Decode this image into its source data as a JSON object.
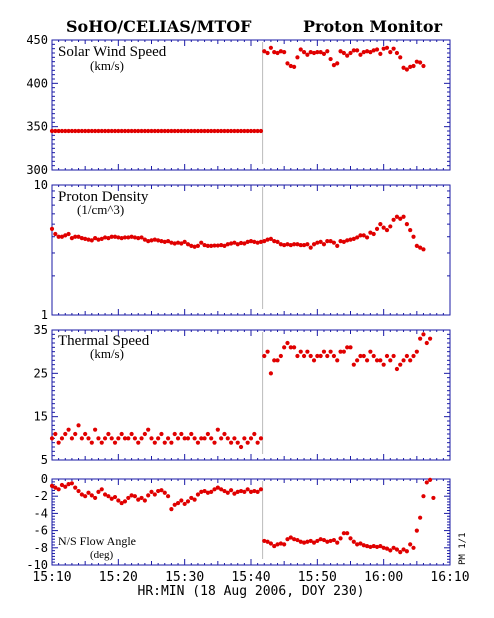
{
  "header": {
    "left_title": "SoHO/CELIAS/MTOF",
    "right_title": "Proton Monitor"
  },
  "side_label": "PM 1/1",
  "chart_data": [
    {
      "type": "scatter",
      "title": "Solar Wind Speed",
      "unit": "(km/s)",
      "ylim": [
        300,
        450
      ],
      "yticks": [
        300,
        350,
        400,
        450
      ],
      "xlim": [
        "15:10",
        "16:10"
      ],
      "color": "#e00000",
      "segments": [
        {
          "start": "15:10",
          "step_min": 0.5,
          "values": [
            345,
            345,
            345,
            345,
            345,
            345,
            345,
            345,
            345,
            345,
            345,
            345,
            345,
            345,
            345,
            345,
            345,
            345,
            345,
            345,
            345,
            345,
            345,
            345,
            345,
            345,
            345,
            345,
            345,
            345,
            345,
            345,
            345,
            345,
            345,
            345,
            345,
            345,
            345,
            345,
            345,
            345,
            345,
            345,
            345,
            345,
            345,
            345,
            345,
            345,
            345,
            345,
            345,
            345,
            345,
            345,
            345,
            345,
            345,
            345,
            345,
            345,
            345,
            345
          ]
        },
        {
          "start": "15:42",
          "step_min": 0.5,
          "values": [
            437,
            435,
            441,
            436,
            435,
            437,
            436,
            423,
            420,
            419,
            430,
            439,
            436,
            433,
            436,
            435,
            436,
            436,
            434,
            437,
            428,
            421,
            423,
            437,
            435,
            432,
            435,
            438,
            438,
            433,
            436,
            437,
            436,
            438,
            439,
            434,
            440,
            441,
            436,
            440,
            435,
            430,
            418,
            416,
            419,
            420,
            425,
            424,
            420
          ]
        }
      ]
    },
    {
      "type": "scatter",
      "title": "Proton Density",
      "unit": "(1/cm^3)",
      "scale": "log",
      "ylim": [
        1,
        10
      ],
      "yticks": [
        1,
        10
      ],
      "xlim": [
        "15:10",
        "16:10"
      ],
      "color": "#e00000",
      "segments": [
        {
          "start": "15:10",
          "step_min": 0.5,
          "values": [
            4.6,
            4.2,
            4.0,
            4.0,
            4.1,
            4.2,
            3.9,
            4.0,
            4.0,
            3.9,
            3.85,
            3.8,
            3.75,
            3.9,
            3.8,
            3.85,
            3.95,
            3.9,
            4.0,
            4.0,
            3.95,
            3.9,
            3.95,
            3.95,
            4.0,
            3.95,
            3.9,
            3.95,
            3.8,
            3.7,
            3.75,
            3.8,
            3.75,
            3.7,
            3.65,
            3.7,
            3.6,
            3.55,
            3.6,
            3.55,
            3.65,
            3.5,
            3.4,
            3.35,
            3.4,
            3.6,
            3.45,
            3.4,
            3.4,
            3.42,
            3.42,
            3.45,
            3.4,
            3.5,
            3.55,
            3.6,
            3.5,
            3.58,
            3.55,
            3.65,
            3.7,
            3.65,
            3.6,
            3.65
          ]
        },
        {
          "start": "15:42",
          "step_min": 0.5,
          "values": [
            3.7,
            3.8,
            3.85,
            3.7,
            3.65,
            3.5,
            3.45,
            3.5,
            3.45,
            3.5,
            3.5,
            3.45,
            3.45,
            3.5,
            3.3,
            3.5,
            3.6,
            3.65,
            3.5,
            3.7,
            3.7,
            3.6,
            3.4,
            3.7,
            3.65,
            3.75,
            3.8,
            3.85,
            3.95,
            4.1,
            4.1,
            3.95,
            4.3,
            4.2,
            4.6,
            5.0,
            4.7,
            4.5,
            4.8,
            5.4,
            5.7,
            5.5,
            5.7,
            5.0,
            4.5,
            4.0,
            3.4,
            3.3,
            3.2
          ]
        }
      ]
    },
    {
      "type": "scatter",
      "title": "Thermal Speed",
      "unit": "(km/s)",
      "ylim": [
        5,
        35
      ],
      "yticks": [
        5,
        15,
        25,
        35
      ],
      "xlim": [
        "15:10",
        "16:10"
      ],
      "color": "#e00000",
      "segments": [
        {
          "start": "15:10",
          "step_min": 0.5,
          "values": [
            10,
            11,
            9,
            10,
            11,
            12,
            10,
            11,
            13,
            10,
            11,
            10,
            9,
            12,
            10,
            9,
            10,
            11,
            10,
            9,
            10,
            11,
            10,
            10,
            11,
            10,
            9,
            10,
            11,
            12,
            10,
            9,
            10,
            11,
            9,
            10,
            9,
            11,
            10,
            11,
            10,
            10,
            11,
            10,
            9,
            10,
            10,
            11,
            10,
            9,
            12,
            10,
            11,
            10,
            9,
            10,
            9,
            8,
            10,
            9,
            10,
            11,
            9,
            10
          ]
        },
        {
          "start": "15:42",
          "step_min": 0.5,
          "values": [
            29,
            30,
            25,
            28,
            28,
            29,
            31,
            32,
            31,
            31,
            29,
            30,
            29,
            30,
            29,
            28,
            29,
            29,
            30,
            29,
            30,
            29,
            28,
            30,
            30,
            31,
            31,
            27,
            28,
            29,
            29,
            28,
            30,
            29,
            28,
            28,
            27,
            29,
            28,
            29,
            26,
            27,
            28,
            29,
            28,
            29,
            30,
            33,
            34,
            32,
            33
          ]
        }
      ]
    },
    {
      "type": "scatter",
      "title": "N/S Flow Angle",
      "unit": "(deg)",
      "ylim": [
        -10,
        0
      ],
      "yticks": [
        -10,
        -8,
        -6,
        -4,
        -2,
        0
      ],
      "xlim": [
        "15:10",
        "16:10"
      ],
      "xticks": [
        "15:10",
        "15:20",
        "15:30",
        "15:40",
        "15:50",
        "16:00",
        "16:10"
      ],
      "xlabel": "HR:MIN (18 Aug 2006, DOY 230)",
      "color": "#e00000",
      "segments": [
        {
          "start": "15:10",
          "step_min": 0.5,
          "values": [
            -0.8,
            -1.0,
            -1.2,
            -0.7,
            -0.9,
            -0.6,
            -0.5,
            -1.0,
            -1.4,
            -1.8,
            -2.0,
            -1.6,
            -1.9,
            -2.2,
            -1.5,
            -1.2,
            -1.8,
            -2.0,
            -2.3,
            -2.1,
            -2.5,
            -2.8,
            -2.6,
            -2.2,
            -1.9,
            -2.0,
            -2.4,
            -2.2,
            -2.5,
            -1.9,
            -1.5,
            -1.8,
            -1.4,
            -1.3,
            -1.6,
            -2.0,
            -3.5,
            -3.0,
            -2.8,
            -2.5,
            -2.9,
            -2.6,
            -2.2,
            -2.4,
            -1.8,
            -1.5,
            -1.4,
            -1.6,
            -1.5,
            -1.2,
            -1.0,
            -1.2,
            -1.4,
            -1.6,
            -1.3,
            -1.7,
            -1.5,
            -1.4,
            -1.5,
            -1.2,
            -1.5,
            -1.4,
            -1.5,
            -1.2
          ]
        },
        {
          "start": "15:42",
          "step_min": 0.5,
          "values": [
            -7.2,
            -7.3,
            -7.5,
            -7.8,
            -7.6,
            -7.5,
            -7.6,
            -7.0,
            -6.8,
            -7.0,
            -7.1,
            -7.3,
            -7.4,
            -7.3,
            -7.2,
            -7.4,
            -7.2,
            -7.0,
            -7.1,
            -7.3,
            -7.2,
            -7.1,
            -7.4,
            -6.9,
            -6.3,
            -6.3,
            -6.9,
            -7.3,
            -7.6,
            -7.5,
            -7.7,
            -7.8,
            -7.9,
            -7.8,
            -7.9,
            -7.8,
            -8.0,
            -8.1,
            -8.3,
            -8.0,
            -8.2,
            -8.5,
            -8.2,
            -8.4,
            -7.6,
            -8.0,
            -6.0,
            -4.5,
            -2.0,
            -0.4,
            -0.1,
            -2.2
          ]
        }
      ]
    }
  ]
}
